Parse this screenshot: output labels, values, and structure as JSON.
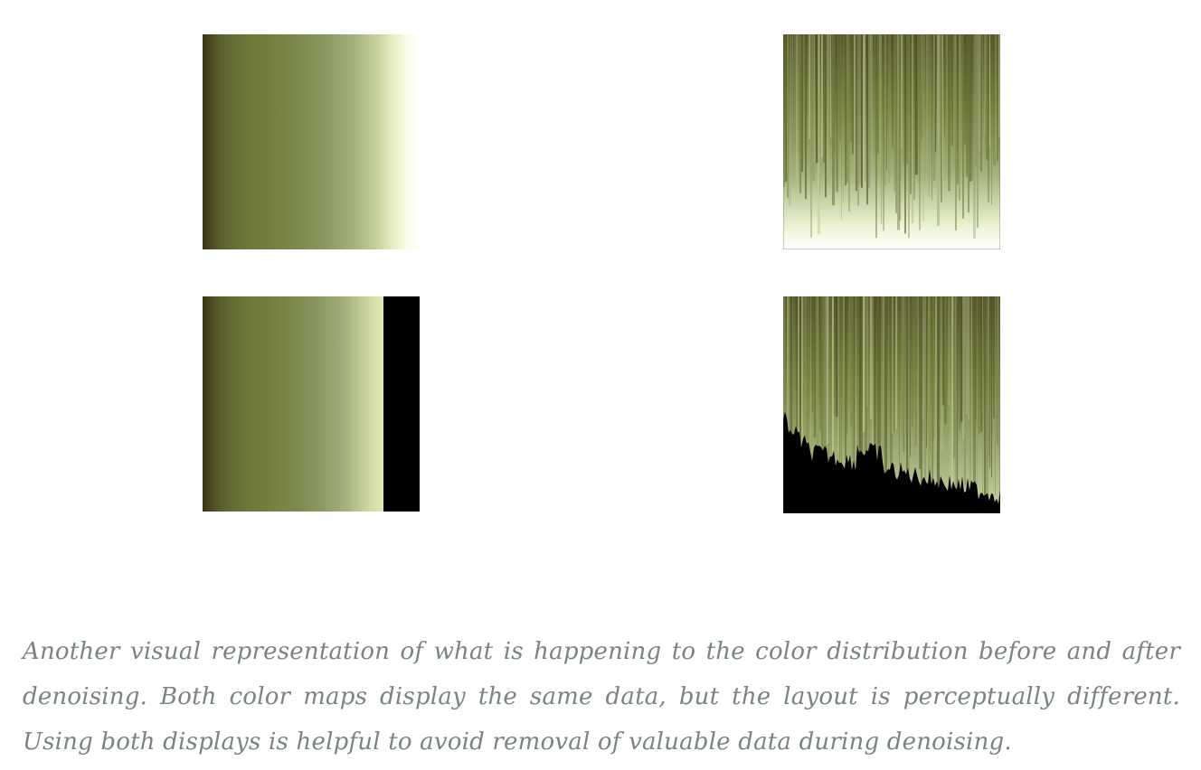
{
  "figures": [
    {
      "id": "tl",
      "kind": "sorted-gradient"
    },
    {
      "id": "tr",
      "kind": "streak-map"
    },
    {
      "id": "bl",
      "kind": "sorted-gradient-with-black-band"
    },
    {
      "id": "br",
      "kind": "streak-map-with-black-floor"
    }
  ],
  "colors": {
    "dark": "#3a3518",
    "olive": "#74803f",
    "sage": "#8c9a63",
    "pale": "#e6efc4",
    "black": "#000000",
    "caption_text": "#7a8386"
  },
  "caption": "Another visual representation of what is happening to the color distribution before and after denoising. Both color maps display the same data, but the layout is perceptually different. Using both displays is helpful to avoid removal of valuable data during denoising."
}
